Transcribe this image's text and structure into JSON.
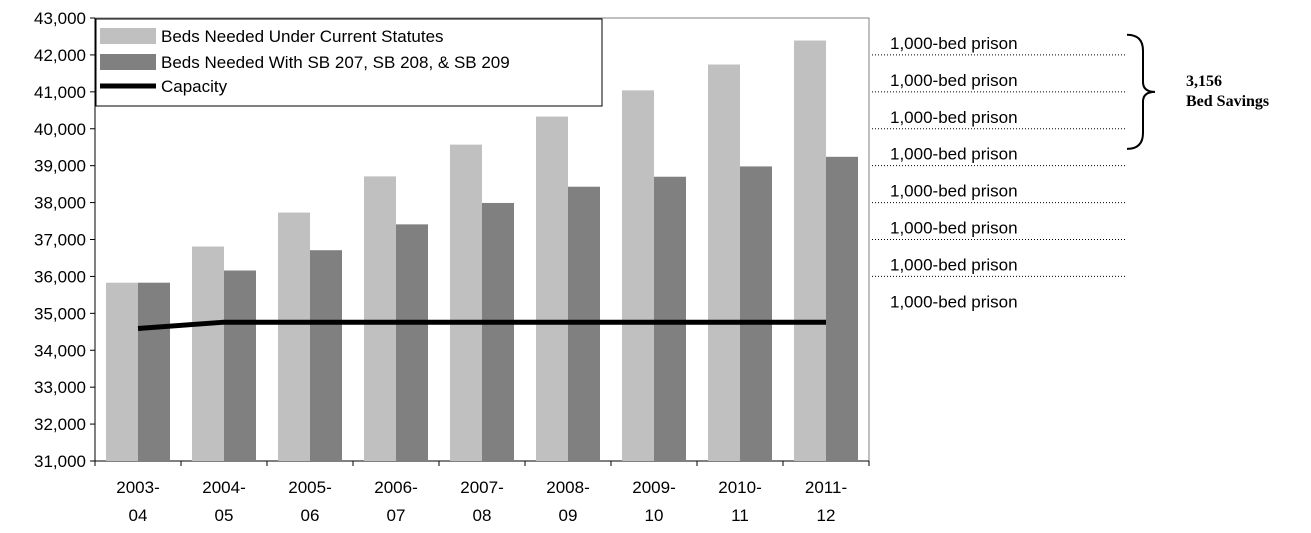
{
  "chart_data": {
    "type": "bar",
    "title": "",
    "xlabel": "",
    "ylabel": "",
    "ylim": [
      31000,
      43000
    ],
    "y_ticks": [
      "31,000",
      "32,000",
      "33,000",
      "34,000",
      "35,000",
      "36,000",
      "37,000",
      "38,000",
      "39,000",
      "40,000",
      "41,000",
      "42,000",
      "43,000"
    ],
    "categories": [
      [
        "2003-",
        "04"
      ],
      [
        "2004-",
        "05"
      ],
      [
        "2005-",
        "06"
      ],
      [
        "2006-",
        "07"
      ],
      [
        "2007-",
        "08"
      ],
      [
        "2008-",
        "09"
      ],
      [
        "2009-",
        "10"
      ],
      [
        "2010-",
        "11"
      ],
      [
        "2011-",
        "12"
      ]
    ],
    "series": [
      {
        "name": "Beds Needed Under Current Statutes",
        "kind": "bar",
        "color": "#c0c0c0",
        "values": [
          35830,
          36810,
          37730,
          38710,
          39570,
          40330,
          41040,
          41740,
          42390
        ]
      },
      {
        "name": "Beds Needed With SB 207, SB 208, & SB 209",
        "kind": "bar",
        "color": "#808080",
        "values": [
          35830,
          36160,
          36710,
          37410,
          37990,
          38430,
          38700,
          38980,
          39240
        ]
      },
      {
        "name": "Capacity",
        "kind": "line",
        "color": "#000000",
        "values": [
          34590,
          34760,
          34760,
          34760,
          34760,
          34760,
          34760,
          34760,
          34760
        ]
      }
    ],
    "legend_position": "top-left",
    "grid": false
  },
  "annotations": {
    "prison_label": "1,000-bed prison",
    "prison_levels": [
      42000,
      41000,
      40000,
      39000,
      38000,
      37000,
      36000,
      35000
    ],
    "savings_value": "3,156",
    "savings_label": "Bed Savings"
  }
}
